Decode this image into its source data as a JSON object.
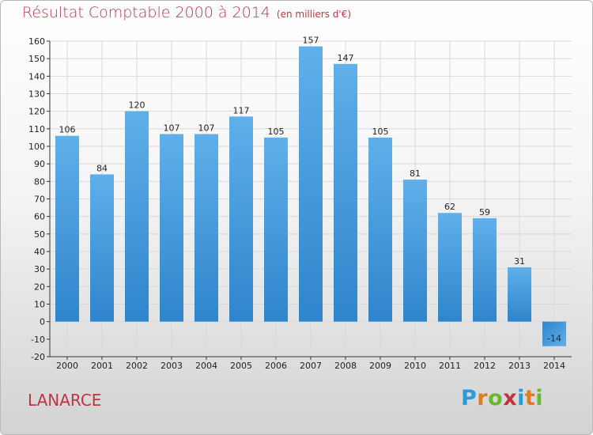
{
  "header": {
    "title": "Résultat Comptable 2000 à 2014",
    "subtitle": "(en milliers d'€)"
  },
  "footer": {
    "commune": "LANARCE",
    "brand": "Proxiti",
    "brand_colors": [
      "#2a9ad8",
      "#e07b1f",
      "#68b832",
      "#c1343e",
      "#2a9ad8",
      "#e07b1f",
      "#68b832"
    ]
  },
  "colors": {
    "bar_light": "#5fb0ea",
    "bar_dark": "#2f85cc",
    "grid": "#d9d9d9",
    "title": "#c1343e"
  },
  "chart_data": {
    "type": "bar",
    "title": "Résultat Comptable 2000 à 2014",
    "subtitle": "(en milliers d'€)",
    "categories": [
      "2000",
      "2001",
      "2002",
      "2003",
      "2004",
      "2005",
      "2006",
      "2007",
      "2008",
      "2009",
      "2010",
      "2011",
      "2012",
      "2013",
      "2014"
    ],
    "values": [
      106,
      84,
      120,
      107,
      107,
      117,
      105,
      157,
      147,
      105,
      81,
      62,
      59,
      31,
      -14
    ],
    "ylim": [
      -20,
      160
    ],
    "yticks": [
      -20,
      -10,
      0,
      10,
      20,
      30,
      40,
      50,
      60,
      70,
      80,
      90,
      100,
      110,
      120,
      130,
      140,
      150,
      160
    ],
    "grid": true,
    "data_labels": true
  }
}
